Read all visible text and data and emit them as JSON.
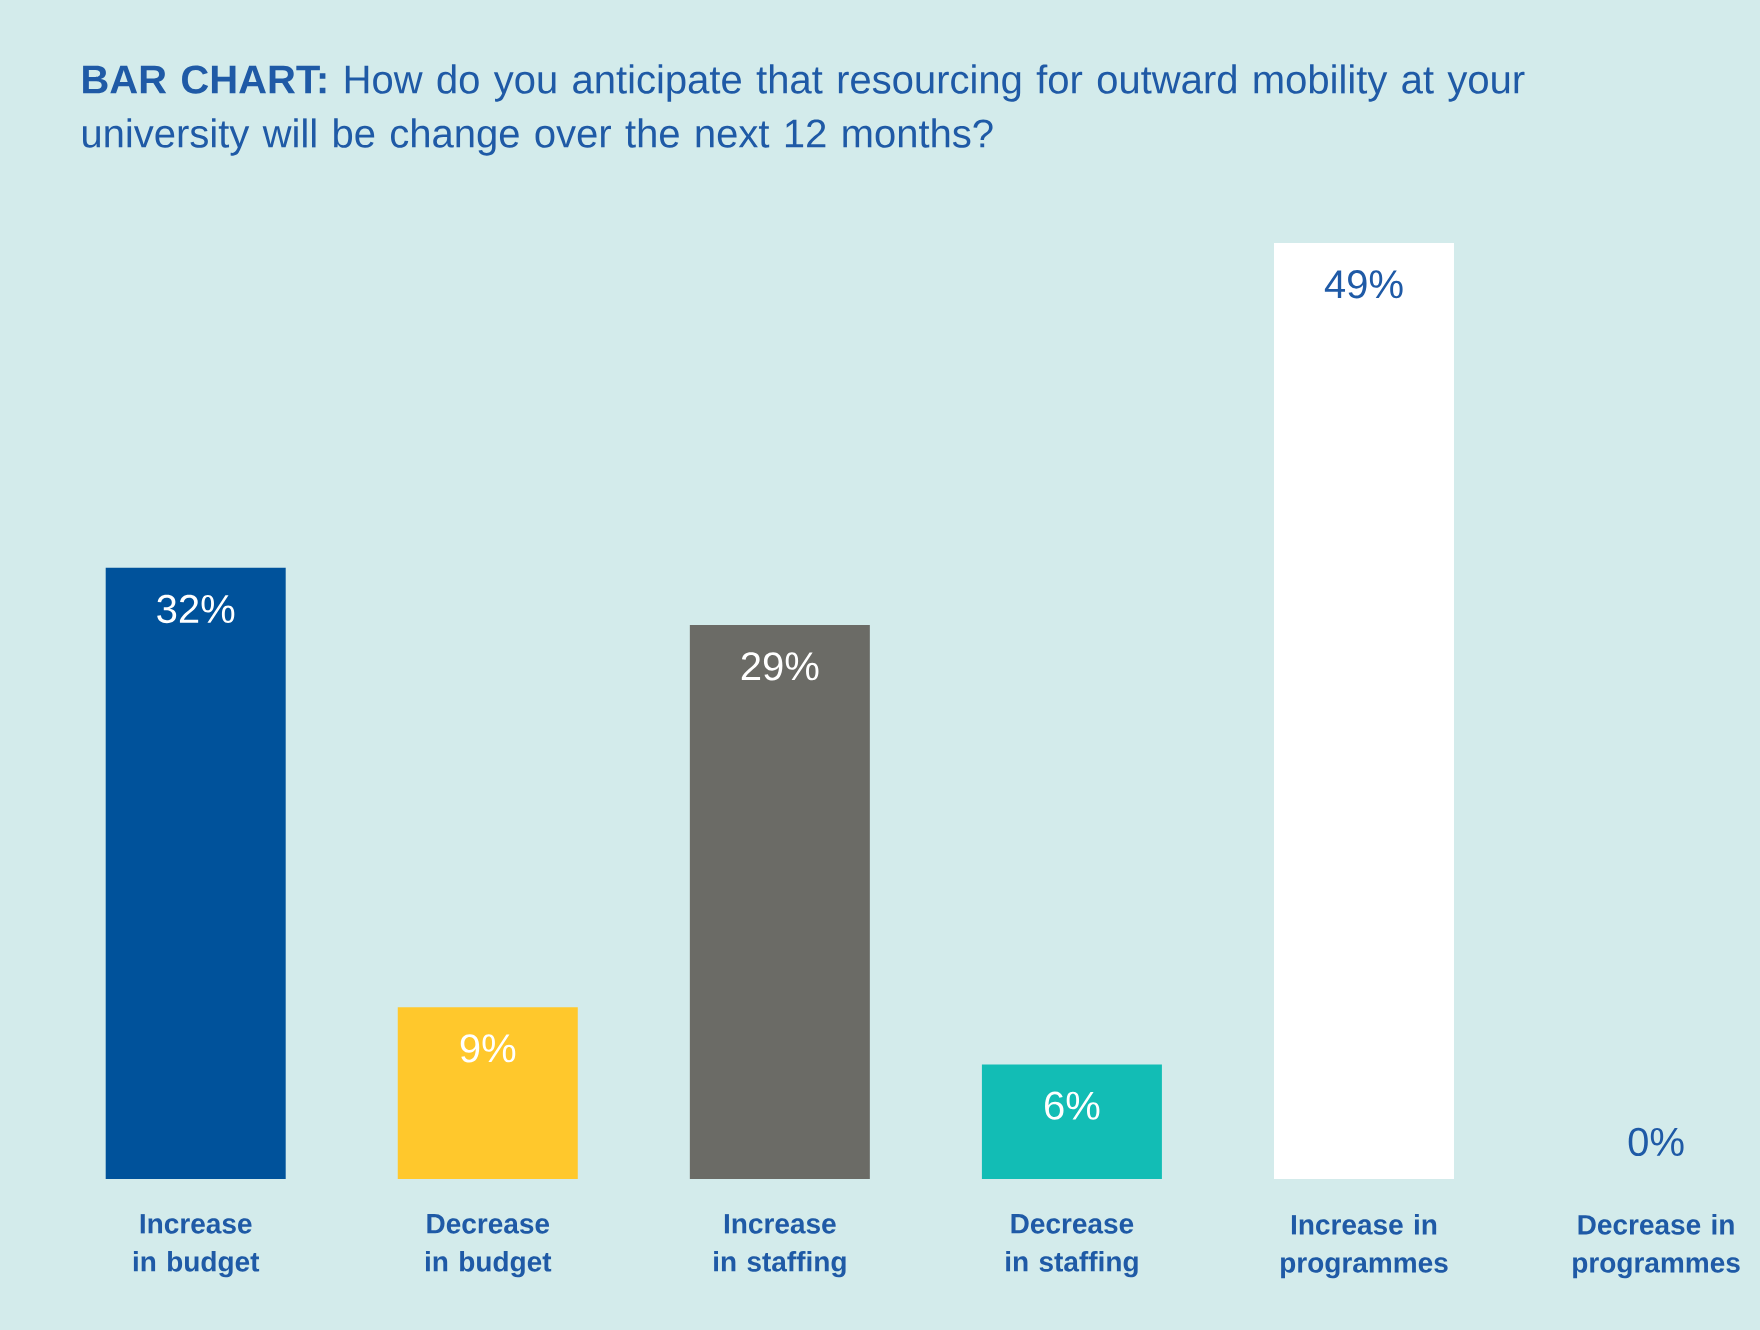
{
  "chart_data": {
    "type": "bar",
    "title": "**BAR CHART:** How do you anticipate that resourcing for outward mobility at your university will be change over the next 12 months?",
    "categories": [
      "Increase in budget",
      "Decrease in budget",
      "Increase in staffing",
      "Decrease in staffing",
      "Increase in programmes",
      "Decrease in programmes"
    ],
    "values": [
      32,
      9,
      29,
      6,
      49,
      0
    ],
    "colors": [
      "#00529b",
      "#ffc82c",
      "#6b6b66",
      "#12bdb5",
      "#ffffff",
      "#ffffff"
    ],
    "value_labels": [
      "32%",
      "9%",
      "29%",
      "6%",
      "49%",
      "0%"
    ],
    "data_labels": true
  }
}
